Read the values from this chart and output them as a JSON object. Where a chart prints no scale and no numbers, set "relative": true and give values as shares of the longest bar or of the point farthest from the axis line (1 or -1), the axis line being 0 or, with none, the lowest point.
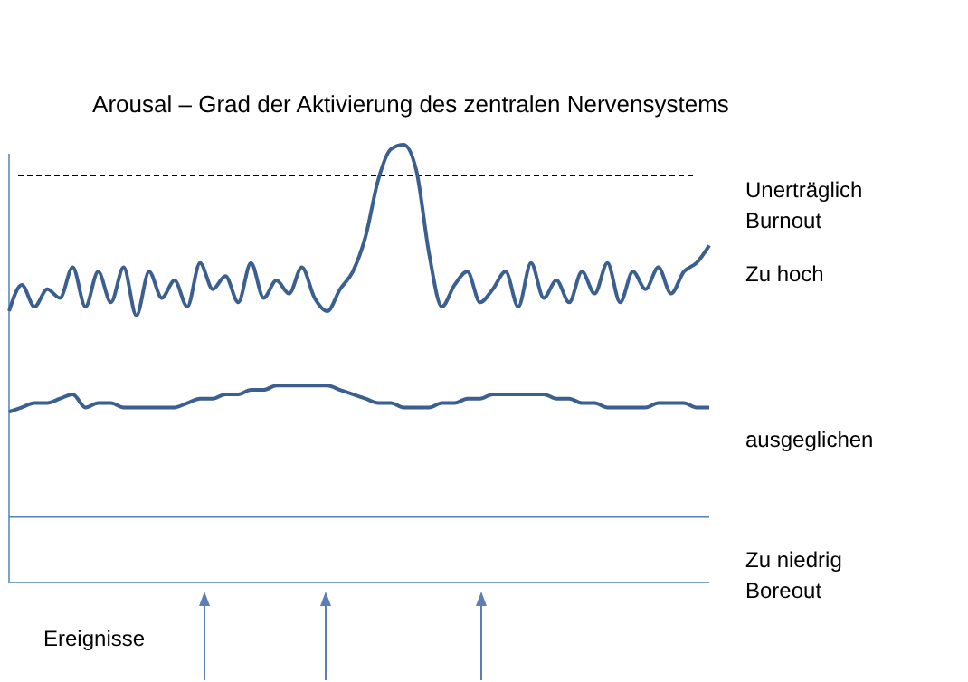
{
  "chart_data": {
    "type": "line",
    "title": "Arousal – Grad der Aktivierung des zentralen Nervensystems",
    "relative": true,
    "categories": [
      null,
      null,
      null,
      null,
      null,
      null,
      null,
      null,
      null,
      null,
      null,
      null,
      null,
      null,
      null,
      null,
      null,
      null,
      null,
      null,
      null,
      null,
      null,
      null,
      null,
      null,
      null,
      null,
      null,
      null,
      null,
      null,
      null,
      null,
      null,
      null,
      null,
      null,
      null,
      null,
      null,
      null,
      null,
      null,
      null,
      null,
      null,
      null,
      null,
      null,
      null,
      null,
      null,
      null,
      null,
      null
    ],
    "series": [
      {
        "name": "Zu hoch",
        "color": "#3b5f8f",
        "values": [
          0.62,
          0.68,
          0.63,
          0.67,
          0.65,
          0.72,
          0.63,
          0.71,
          0.64,
          0.72,
          0.61,
          0.71,
          0.65,
          0.69,
          0.63,
          0.73,
          0.67,
          0.7,
          0.64,
          0.73,
          0.65,
          0.69,
          0.66,
          0.72,
          0.65,
          0.62,
          0.67,
          0.71,
          0.79,
          0.92,
          0.99,
          1,
          0.94,
          0.75,
          0.63,
          0.68,
          0.71,
          0.64,
          0.67,
          0.71,
          0.63,
          0.73,
          0.65,
          0.69,
          0.64,
          0.71,
          0.66,
          0.73,
          0.64,
          0.71,
          0.67,
          0.72,
          0.66,
          0.71,
          0.73,
          0.77
        ]
      },
      {
        "name": "ausgeglichen",
        "color": "#3b5f8f",
        "values": [
          0.39,
          0.4,
          0.41,
          0.41,
          0.42,
          0.43,
          0.4,
          0.41,
          0.41,
          0.4,
          0.4,
          0.4,
          0.4,
          0.4,
          0.41,
          0.42,
          0.42,
          0.43,
          0.43,
          0.44,
          0.44,
          0.45,
          0.45,
          0.45,
          0.45,
          0.45,
          0.44,
          0.43,
          0.42,
          0.41,
          0.41,
          0.4,
          0.4,
          0.4,
          0.41,
          0.41,
          0.42,
          0.42,
          0.43,
          0.43,
          0.43,
          0.43,
          0.43,
          0.42,
          0.42,
          0.41,
          0.41,
          0.4,
          0.4,
          0.4,
          0.4,
          0.41,
          0.41,
          0.41,
          0.4,
          0.4
        ]
      }
    ],
    "ref_lines": [
      {
        "axis": "y",
        "value": 0.93,
        "label": "Unerträglich\nBurnout",
        "color": "#000000",
        "line_style": "dashed"
      },
      {
        "axis": "y",
        "value": 0.15,
        "label": "Zu niedrig\nBoreout",
        "color": "#5b7fb5",
        "line_style": "solid"
      }
    ],
    "annotations": [
      "Ereignisse"
    ],
    "legend": false,
    "grid": false,
    "marker": "none",
    "line_style": "solid"
  }
}
